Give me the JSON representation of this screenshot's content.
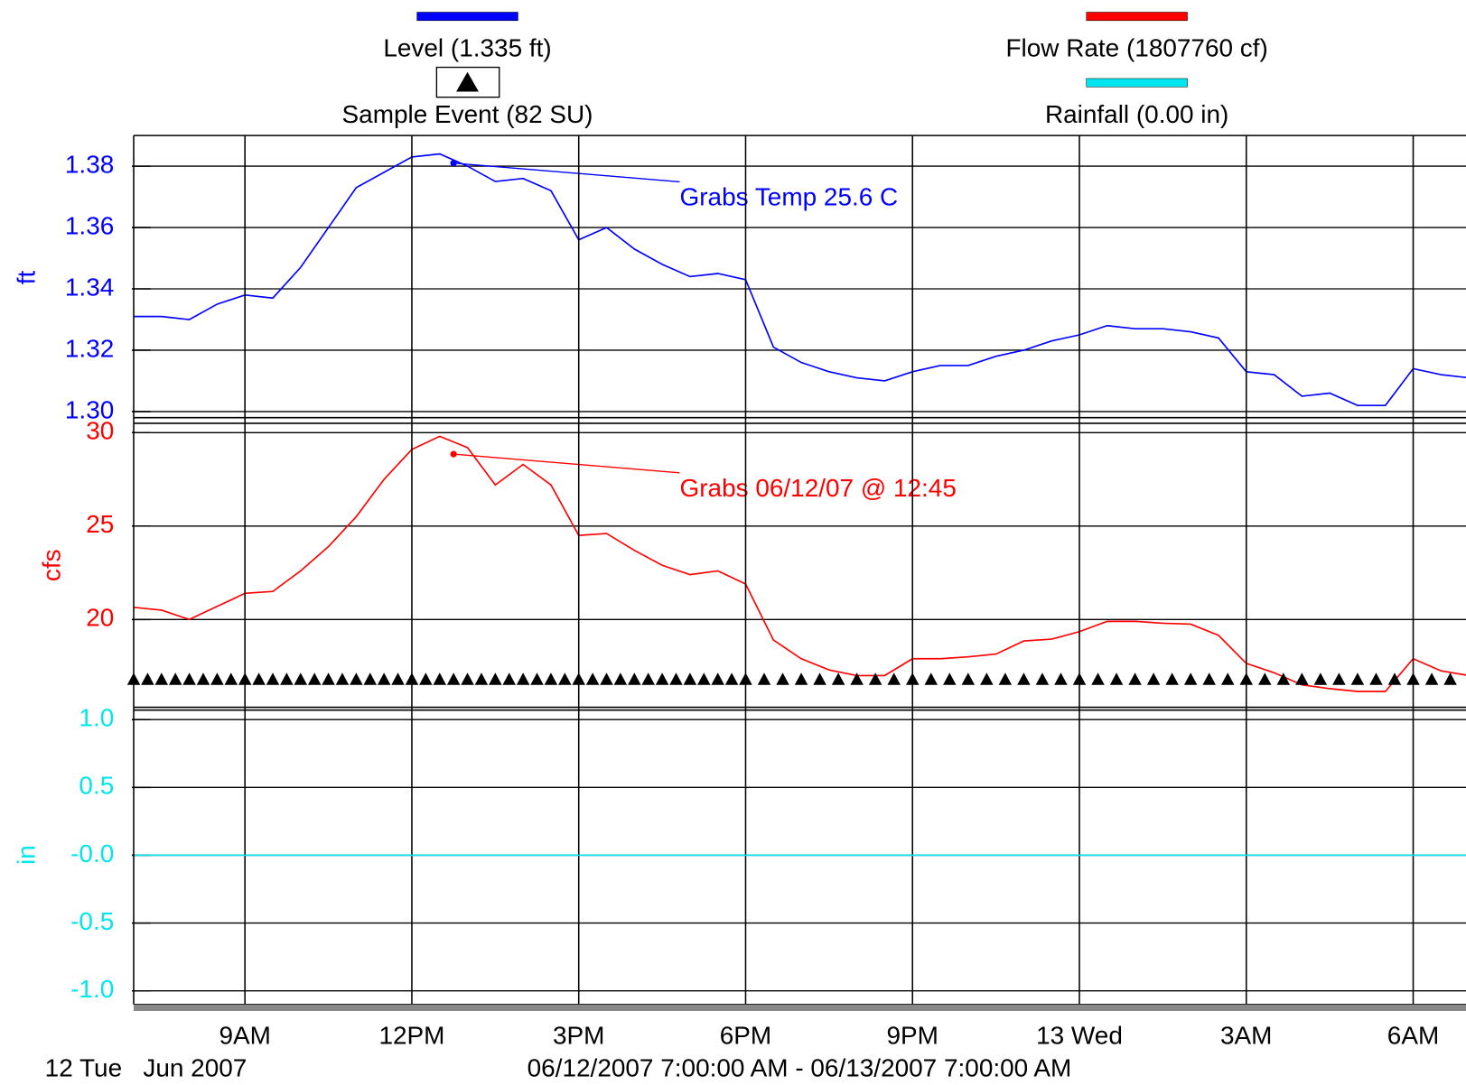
{
  "chart_data": [
    {
      "type": "line",
      "ylabel": "ft",
      "xlim": [
        "2007-06-12T07:00",
        "2007-06-13T07:00"
      ],
      "ylim": [
        1.298,
        1.39
      ],
      "yticks": [
        {
          "value": 1.3,
          "label": "1.30"
        },
        1.32,
        1.34,
        1.36,
        1.38
      ],
      "grid": true,
      "series": [
        {
          "name": "Level (1.335 ft)",
          "color": "#0000ff",
          "x": [
            "2007-06-12T07:00",
            "2007-06-12T07:30",
            "2007-06-12T08:00",
            "2007-06-12T08:30",
            "2007-06-12T09:00",
            "2007-06-12T09:30",
            "2007-06-12T10:00",
            "2007-06-12T10:30",
            "2007-06-12T11:00",
            "2007-06-12T11:30",
            "2007-06-12T12:00",
            "2007-06-12T12:30",
            "2007-06-12T13:00",
            "2007-06-12T13:30",
            "2007-06-12T14:00",
            "2007-06-12T14:30",
            "2007-06-12T15:00",
            "2007-06-12T15:30",
            "2007-06-12T16:00",
            "2007-06-12T16:30",
            "2007-06-12T17:00",
            "2007-06-12T17:30",
            "2007-06-12T18:00",
            "2007-06-12T18:30",
            "2007-06-12T19:00",
            "2007-06-12T19:30",
            "2007-06-12T20:00",
            "2007-06-12T20:30",
            "2007-06-12T21:00",
            "2007-06-12T21:30",
            "2007-06-12T22:00",
            "2007-06-12T22:30",
            "2007-06-12T23:00",
            "2007-06-12T23:30",
            "2007-06-13T00:00",
            "2007-06-13T00:30",
            "2007-06-13T01:00",
            "2007-06-13T01:30",
            "2007-06-13T02:00",
            "2007-06-13T02:30",
            "2007-06-13T03:00",
            "2007-06-13T03:30",
            "2007-06-13T04:00",
            "2007-06-13T04:30",
            "2007-06-13T05:00",
            "2007-06-13T05:30",
            "2007-06-13T06:00",
            "2007-06-13T06:30",
            "2007-06-13T07:00"
          ],
          "values": [
            1.331,
            1.331,
            1.33,
            1.335,
            1.338,
            1.337,
            1.347,
            1.36,
            1.373,
            1.378,
            1.383,
            1.384,
            1.38,
            1.375,
            1.376,
            1.372,
            1.356,
            1.36,
            1.353,
            1.348,
            1.344,
            1.345,
            1.343,
            1.321,
            1.316,
            1.313,
            1.311,
            1.31,
            1.313,
            1.315,
            1.315,
            1.318,
            1.32,
            1.323,
            1.325,
            1.328,
            1.327,
            1.327,
            1.326,
            1.324,
            1.313,
            1.312,
            1.305,
            1.306,
            1.302,
            1.302,
            1.314,
            1.312,
            1.311
          ]
        }
      ],
      "annotations": [
        {
          "text": "Grabs Temp 25.6 C",
          "x": "2007-06-12T12:45",
          "y": 1.381
        }
      ]
    },
    {
      "type": "line",
      "ylabel": "cfs",
      "xlim": [
        "2007-06-12T07:00",
        "2007-06-13T07:00"
      ],
      "ylim": [
        15.3,
        30.5
      ],
      "yticks": [
        20,
        25,
        30
      ],
      "grid": true,
      "series": [
        {
          "name": "Flow Rate (1807760 cf)",
          "color": "#ff0000",
          "x": [
            "2007-06-12T07:00",
            "2007-06-12T07:30",
            "2007-06-12T08:00",
            "2007-06-12T08:30",
            "2007-06-12T09:00",
            "2007-06-12T09:30",
            "2007-06-12T10:00",
            "2007-06-12T10:30",
            "2007-06-12T11:00",
            "2007-06-12T11:30",
            "2007-06-12T12:00",
            "2007-06-12T12:30",
            "2007-06-12T13:00",
            "2007-06-12T13:30",
            "2007-06-12T14:00",
            "2007-06-12T14:30",
            "2007-06-12T15:00",
            "2007-06-12T15:30",
            "2007-06-12T16:00",
            "2007-06-12T16:30",
            "2007-06-12T17:00",
            "2007-06-12T17:30",
            "2007-06-12T18:00",
            "2007-06-12T18:30",
            "2007-06-12T19:00",
            "2007-06-12T19:30",
            "2007-06-12T20:00",
            "2007-06-12T20:30",
            "2007-06-12T21:00",
            "2007-06-12T21:30",
            "2007-06-12T22:00",
            "2007-06-12T22:30",
            "2007-06-12T23:00",
            "2007-06-12T23:30",
            "2007-06-13T00:00",
            "2007-06-13T00:30",
            "2007-06-13T01:00",
            "2007-06-13T01:30",
            "2007-06-13T02:00",
            "2007-06-13T02:30",
            "2007-06-13T03:00",
            "2007-06-13T03:30",
            "2007-06-13T04:00",
            "2007-06-13T04:30",
            "2007-06-13T05:00",
            "2007-06-13T05:30",
            "2007-06-13T06:00",
            "2007-06-13T06:30",
            "2007-06-13T07:00"
          ],
          "values": [
            20.65,
            20.5,
            20.0,
            20.7,
            21.4,
            21.5,
            22.6,
            23.9,
            25.5,
            27.5,
            29.1,
            29.8,
            29.2,
            27.2,
            28.3,
            27.2,
            24.5,
            24.6,
            23.7,
            22.9,
            22.4,
            22.6,
            21.9,
            18.9,
            17.9,
            17.3,
            17.0,
            17.0,
            17.9,
            17.9,
            18.0,
            18.15,
            18.85,
            18.95,
            19.35,
            19.9,
            19.9,
            19.8,
            19.75,
            19.15,
            17.65,
            17.15,
            16.5,
            16.3,
            16.15,
            16.15,
            17.9,
            17.25,
            17.0
          ]
        },
        {
          "name": "Sample Event (82 SU)",
          "color": "#000000",
          "marker": "triangle",
          "level": 16.8,
          "x": [
            "2007-06-12T07:00",
            "2007-06-12T07:15",
            "2007-06-12T07:30",
            "2007-06-12T07:45",
            "2007-06-12T08:00",
            "2007-06-12T08:15",
            "2007-06-12T08:30",
            "2007-06-12T08:45",
            "2007-06-12T09:00",
            "2007-06-12T09:15",
            "2007-06-12T09:30",
            "2007-06-12T09:45",
            "2007-06-12T10:00",
            "2007-06-12T10:15",
            "2007-06-12T10:30",
            "2007-06-12T10:45",
            "2007-06-12T11:00",
            "2007-06-12T11:15",
            "2007-06-12T11:30",
            "2007-06-12T11:45",
            "2007-06-12T12:00",
            "2007-06-12T12:15",
            "2007-06-12T12:30",
            "2007-06-12T12:45",
            "2007-06-12T13:00",
            "2007-06-12T13:15",
            "2007-06-12T13:30",
            "2007-06-12T13:45",
            "2007-06-12T14:00",
            "2007-06-12T14:15",
            "2007-06-12T14:30",
            "2007-06-12T14:45",
            "2007-06-12T15:00",
            "2007-06-12T15:15",
            "2007-06-12T15:30",
            "2007-06-12T15:45",
            "2007-06-12T16:00",
            "2007-06-12T16:15",
            "2007-06-12T16:30",
            "2007-06-12T16:45",
            "2007-06-12T17:00",
            "2007-06-12T17:15",
            "2007-06-12T17:30",
            "2007-06-12T17:45",
            "2007-06-12T18:00",
            "2007-06-12T18:20",
            "2007-06-12T18:40",
            "2007-06-12T19:00",
            "2007-06-12T19:20",
            "2007-06-12T19:40",
            "2007-06-12T20:00",
            "2007-06-12T20:20",
            "2007-06-12T20:40",
            "2007-06-12T21:00",
            "2007-06-12T21:20",
            "2007-06-12T21:40",
            "2007-06-12T22:00",
            "2007-06-12T22:20",
            "2007-06-12T22:40",
            "2007-06-12T23:00",
            "2007-06-12T23:20",
            "2007-06-12T23:40",
            "2007-06-13T00:00",
            "2007-06-13T00:20",
            "2007-06-13T00:40",
            "2007-06-13T01:00",
            "2007-06-13T01:20",
            "2007-06-13T01:40",
            "2007-06-13T02:00",
            "2007-06-13T02:20",
            "2007-06-13T02:40",
            "2007-06-13T03:00",
            "2007-06-13T03:20",
            "2007-06-13T03:40",
            "2007-06-13T04:00",
            "2007-06-13T04:20",
            "2007-06-13T04:40",
            "2007-06-13T05:00",
            "2007-06-13T05:20",
            "2007-06-13T05:40",
            "2007-06-13T06:00",
            "2007-06-13T06:20",
            "2007-06-13T06:40"
          ]
        }
      ],
      "annotations": [
        {
          "text": "Grabs 06/12/07 @ 12:45",
          "x": "2007-06-12T12:45",
          "y": 28.85
        }
      ]
    },
    {
      "type": "line",
      "ylabel": "in",
      "xlim": [
        "2007-06-12T07:00",
        "2007-06-13T07:00"
      ],
      "ylim": [
        -1.1,
        1.07
      ],
      "yticks": [
        {
          "value": 1.0,
          "label": "1.0"
        },
        {
          "value": 0.5,
          "label": "0.5"
        },
        {
          "value": 0,
          "label": "-0.0"
        },
        {
          "value": -0.5,
          "label": "-0.5"
        },
        {
          "value": -1.0,
          "label": "-1.0"
        }
      ],
      "grid": true,
      "xticks": [
        {
          "value": "2007-06-12T09:00",
          "label": "9AM"
        },
        {
          "value": "2007-06-12T12:00",
          "label": "12PM"
        },
        {
          "value": "2007-06-12T15:00",
          "label": "3PM"
        },
        {
          "value": "2007-06-12T18:00",
          "label": "6PM"
        },
        {
          "value": "2007-06-12T21:00",
          "label": "9PM"
        },
        {
          "value": "2007-06-13T00:00",
          "label": "13 Wed"
        },
        {
          "value": "2007-06-13T03:00",
          "label": "3AM"
        },
        {
          "value": "2007-06-13T06:00",
          "label": "6AM"
        }
      ],
      "day_label": "12 Tue",
      "month_label": "Jun 2007",
      "range_label": "06/12/2007 7:00:00 AM - 06/13/2007 7:00:00 AM",
      "series": [
        {
          "name": "Rainfall (0.00 in)",
          "color": "#00e5ee",
          "x": [
            "2007-06-12T07:00",
            "2007-06-13T07:00"
          ],
          "values": [
            0,
            0
          ]
        }
      ]
    }
  ]
}
